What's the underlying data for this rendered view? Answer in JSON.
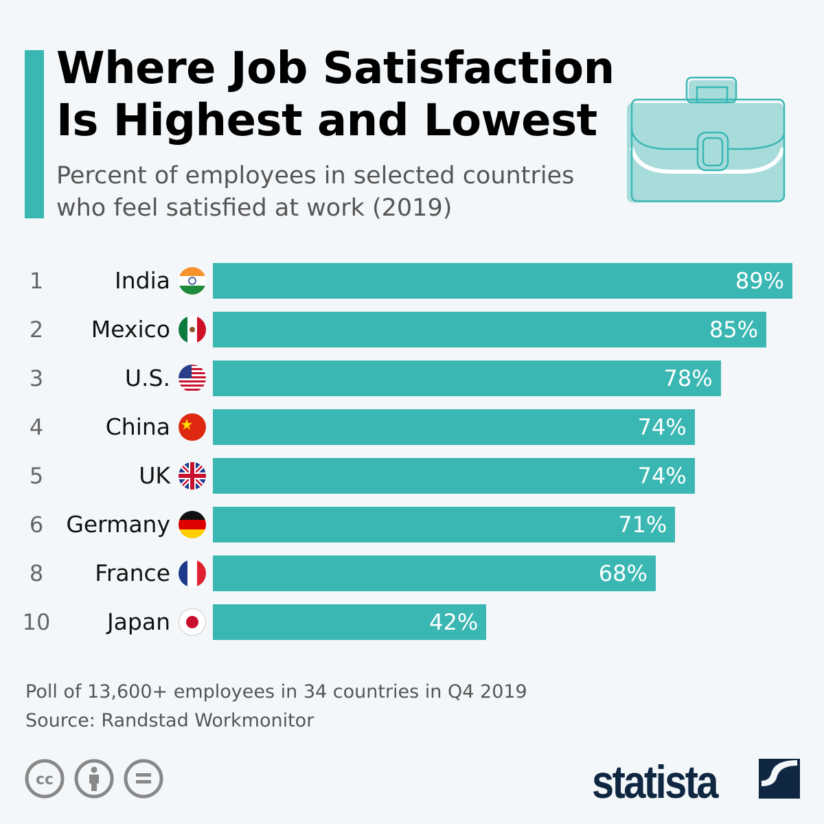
{
  "header": {
    "title_line1": "Where Job Satisfaction",
    "title_line2": "Is Highest and Lowest",
    "subtitle_line1": "Percent of employees in selected countries",
    "subtitle_line2": "who feel satisfied at work (2019)",
    "icon": "briefcase-icon"
  },
  "chart_data": {
    "type": "bar",
    "orientation": "horizontal",
    "categories": [
      "India",
      "Mexico",
      "U.S.",
      "China",
      "UK",
      "Germany",
      "France",
      "Japan"
    ],
    "ranks": [
      "1",
      "2",
      "3",
      "4",
      "5",
      "6",
      "8",
      "10"
    ],
    "values": [
      89,
      85,
      78,
      74,
      74,
      71,
      68,
      42
    ],
    "value_labels": [
      "89%",
      "85%",
      "78%",
      "74%",
      "74%",
      "71%",
      "68%",
      "42%"
    ],
    "flags": [
      "india",
      "mexico",
      "us",
      "china",
      "uk",
      "germany",
      "france",
      "japan"
    ],
    "xlim": [
      0,
      100
    ],
    "grid": false,
    "bar_color": "#3ab7b3"
  },
  "footer": {
    "note": "Poll of 13,600+ employees in 34 countries in Q4 2019",
    "source": "Source: Randstad Workmonitor",
    "brand": "statista",
    "license_icons": [
      "cc-icon",
      "attribution-icon",
      "no-derivatives-icon"
    ]
  },
  "colors": {
    "accent": "#3ab7b3",
    "background": "#f4f7fa",
    "brand": "#0f2740"
  }
}
